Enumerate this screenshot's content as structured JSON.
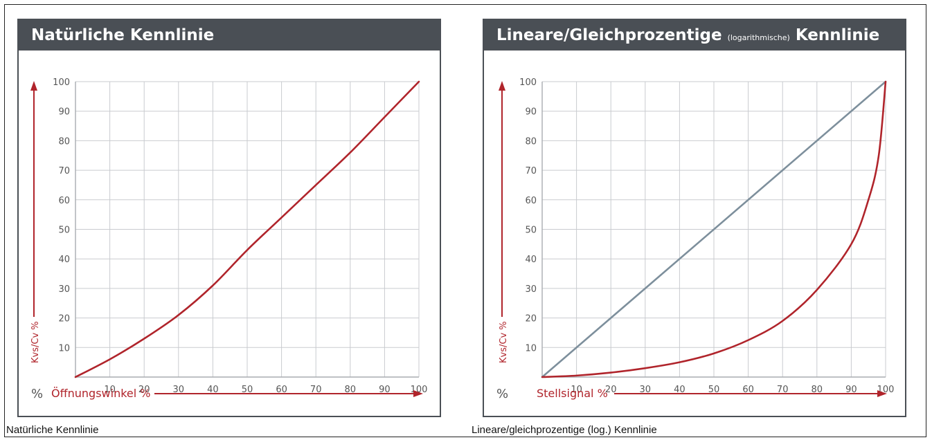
{
  "captions": {
    "left": "Natürliche Kennlinie",
    "right": "Lineare/gleichprozentige (log.) Kennlinie"
  },
  "colors": {
    "header_bg": "#4a4f55",
    "red": "#b0242b",
    "linear": "#7d8f9c",
    "grid": "#c9cbcf"
  },
  "chart_data": [
    {
      "type": "line",
      "title": "Natürliche Kennlinie",
      "xlabel": "Öffnungswinkel %",
      "ylabel": "Kvs/Cv %",
      "origin_label": "%",
      "xlim": [
        0,
        100
      ],
      "ylim": [
        0,
        100
      ],
      "x_ticks": [
        "10",
        "20",
        "30",
        "40",
        "50",
        "60",
        "70",
        "80",
        "90",
        "100"
      ],
      "y_ticks": [
        "10",
        "20",
        "30",
        "40",
        "50",
        "60",
        "70",
        "80",
        "90",
        "100"
      ],
      "grid": true,
      "series": [
        {
          "color": "#b0242b",
          "x": [
            0,
            10,
            20,
            30,
            40,
            50,
            60,
            70,
            80,
            90,
            100
          ],
          "y": [
            0,
            6,
            13,
            21,
            31,
            43,
            54,
            65,
            76,
            88,
            100
          ]
        }
      ]
    },
    {
      "type": "line",
      "title": "Lineare/Gleichprozentige",
      "title_small": "(logarithmische)",
      "title_suffix": "Kennlinie",
      "xlabel": "Stellsignal %",
      "ylabel": "Kvs/Cv %",
      "origin_label": "%",
      "xlim": [
        0,
        100
      ],
      "ylim": [
        0,
        100
      ],
      "x_ticks": [
        "10",
        "20",
        "30",
        "40",
        "50",
        "60",
        "70",
        "80",
        "90",
        "100"
      ],
      "y_ticks": [
        "10",
        "20",
        "30",
        "40",
        "50",
        "60",
        "70",
        "80",
        "90",
        "100"
      ],
      "grid": true,
      "series": [
        {
          "color": "#7d8f9c",
          "x": [
            0,
            100
          ],
          "y": [
            0,
            100
          ]
        },
        {
          "color": "#b0242b",
          "x": [
            0,
            10,
            20,
            30,
            40,
            50,
            60,
            70,
            80,
            90,
            95,
            98,
            100
          ],
          "y": [
            0,
            0.5,
            1.5,
            3,
            5,
            8,
            12.5,
            19,
            29.5,
            45,
            60,
            75,
            100
          ]
        }
      ]
    }
  ]
}
